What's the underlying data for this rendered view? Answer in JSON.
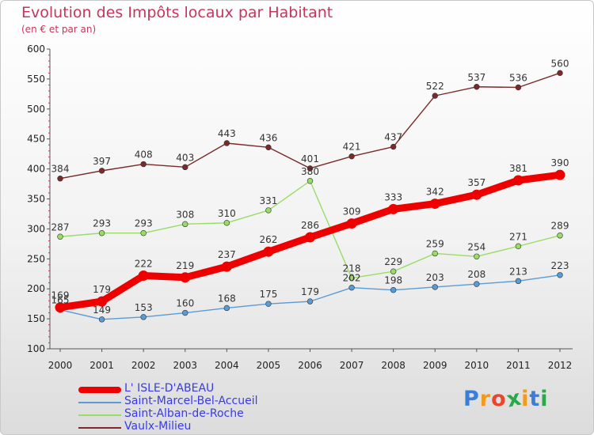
{
  "title": "Evolution des Impôts locaux par Habitant",
  "subtitle": "(en € et par an)",
  "brand": {
    "logo_text": "Proxiti"
  },
  "chart_data": {
    "type": "line",
    "title": "Evolution des Impôts locaux par Habitant",
    "subtitle": "(en € et par an)",
    "xlabel": "",
    "ylabel": "",
    "x": [
      "2000",
      "2001",
      "2002",
      "2003",
      "2004",
      "2005",
      "2006",
      "2007",
      "2008",
      "2009",
      "2010",
      "2011",
      "2012"
    ],
    "yticks": [
      "100",
      "150",
      "200",
      "250",
      "300",
      "350",
      "400",
      "450",
      "500",
      "550",
      "600"
    ],
    "ylim": [
      100,
      600
    ],
    "grid": false,
    "legend_position": "bottom-left",
    "series": [
      {
        "name": "L' ISLE-D'ABEAU",
        "color": "#ee0000",
        "emphasis": true,
        "values": [
          169,
          179,
          222,
          219,
          237,
          262,
          286,
          309,
          333,
          342,
          357,
          381,
          390
        ]
      },
      {
        "name": "Saint-Marcel-Bel-Accueil",
        "color": "#5b9bd5",
        "emphasis": false,
        "values": [
          165,
          149,
          153,
          160,
          168,
          175,
          179,
          202,
          198,
          203,
          208,
          213,
          223
        ]
      },
      {
        "name": "Saint-Alban-de-Roche",
        "color": "#99dd66",
        "emphasis": false,
        "values": [
          287,
          293,
          293,
          308,
          310,
          331,
          380,
          218,
          229,
          259,
          254,
          271,
          289
        ]
      },
      {
        "name": "Vaulx-Milieu",
        "color": "#7a2a2a",
        "emphasis": false,
        "values": [
          384,
          397,
          408,
          403,
          443,
          436,
          401,
          421,
          437,
          522,
          537,
          536,
          560
        ]
      }
    ]
  }
}
